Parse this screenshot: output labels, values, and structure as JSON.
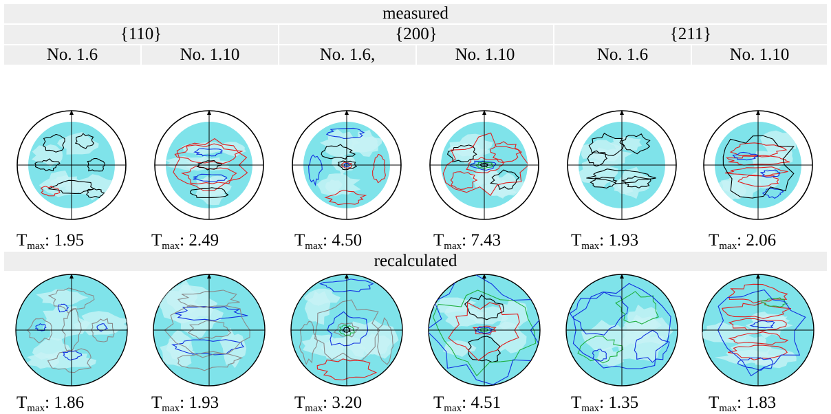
{
  "measured_label": "measured",
  "recalculated_label": "recalculated",
  "planes": [
    "{110}",
    "{200}",
    "{211}"
  ],
  "samples": [
    "No. 1.6",
    "No. 1.10",
    "No. 1.6,",
    "No. 1.10",
    "No. 1.6",
    "No. 1.10"
  ],
  "tmax_prefix": "T",
  "tmax_sub": "max",
  "tmax_sep": ": ",
  "measured_tmax": [
    "1.95",
    "2.49",
    "4.50",
    "7.43",
    "1.93",
    "2.06"
  ],
  "recalculated_tmax": [
    "1.86",
    "1.93",
    "3.20",
    "4.51",
    "1.35",
    "1.83"
  ],
  "colors": {
    "fill": "#7fe3ea",
    "fill_light": "#c8f3f5",
    "band": "#eeeeee",
    "contour_black": "#000000",
    "contour_red": "#e02020",
    "contour_blue": "#1030e0",
    "contour_green": "#20b040",
    "contour_grey": "#8a8a8a"
  }
}
